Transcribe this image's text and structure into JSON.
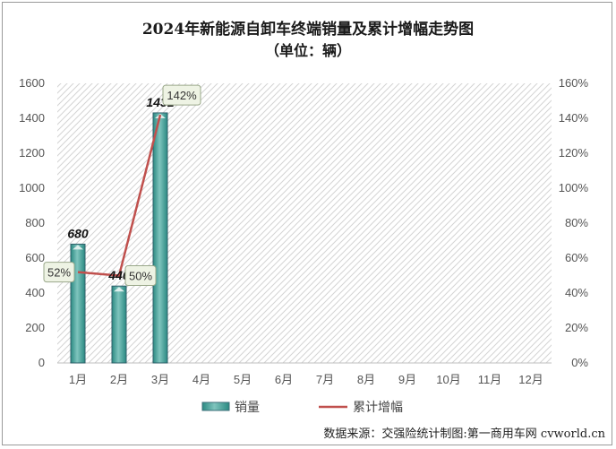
{
  "title": "2024年新能源自卸车终端销量及累计增幅走势图",
  "subtitle": "（单位：辆）",
  "source": "数据来源：交强险统计制图:第一商用车网 cvworld.cn",
  "colors": {
    "bar": "#2a8a82",
    "bar_light": "#7fc4bd",
    "line": "#c0504d",
    "label_box_fill": "#eef3e4",
    "label_box_border": "#9aa88a"
  },
  "chart_data": {
    "type": "bar",
    "categories": [
      "1月",
      "2月",
      "3月",
      "4月",
      "5月",
      "6月",
      "7月",
      "8月",
      "9月",
      "10月",
      "11月",
      "12月"
    ],
    "series": [
      {
        "name": "销量",
        "type": "bar",
        "axis": "left",
        "values": [
          680,
          440,
          1431,
          null,
          null,
          null,
          null,
          null,
          null,
          null,
          null,
          null
        ]
      },
      {
        "name": "累计增幅",
        "type": "line",
        "axis": "right",
        "values": [
          52,
          50,
          142,
          null,
          null,
          null,
          null,
          null,
          null,
          null,
          null,
          null
        ]
      }
    ],
    "bar_labels": [
      "680",
      "440",
      "1431"
    ],
    "line_labels": [
      "52%",
      "50%",
      "142%"
    ],
    "y_left": {
      "min": 0,
      "max": 1600,
      "ticks": [
        "0",
        "200",
        "400",
        "600",
        "800",
        "1000",
        "1200",
        "1400",
        "1600"
      ]
    },
    "y_right": {
      "min": 0,
      "max": 160,
      "ticks": [
        "0%",
        "20%",
        "40%",
        "60%",
        "80%",
        "100%",
        "120%",
        "140%",
        "160%"
      ]
    },
    "grid": false,
    "plot_background": "diagonal-hatch",
    "legend_position": "bottom"
  }
}
